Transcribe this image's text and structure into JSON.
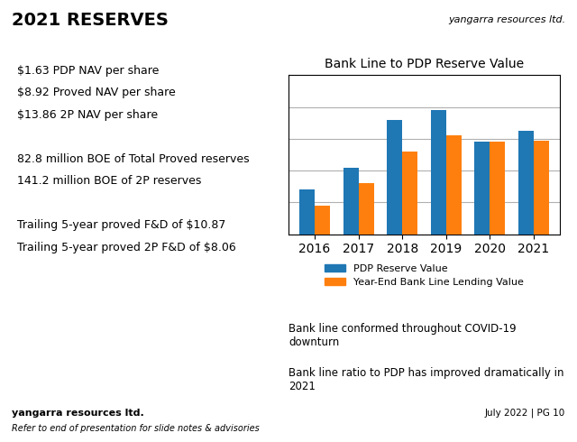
{
  "chart_data": {
    "type": "bar",
    "title": "Bank Line to PDP Reserve Value",
    "categories": [
      "2016",
      "2017",
      "2018",
      "2019",
      "2020",
      "2021"
    ],
    "series": [
      {
        "name": "PDP Reserve Value",
        "values": [
          2.8,
          4.2,
          7.2,
          7.8,
          5.8,
          6.5
        ]
      },
      {
        "name": "Year-End Bank Line Lending Value",
        "values": [
          1.8,
          3.2,
          5.2,
          6.2,
          5.8,
          5.9
        ]
      }
    ],
    "ylim": [
      0,
      10
    ],
    "yticks": [
      0,
      2,
      4,
      6,
      8,
      10
    ],
    "grid": true,
    "tick_labels": "x",
    "legend": "upper center",
    "annotations": [
      "2021 RESERVES",
      "yangarra resources ltd.",
      "$1.63 PDP NAV per share",
      "$8.92 Proved NAV per share",
      "$13.86 2P NAV per share",
      "82.8 million BOE of Total Proved reserves",
      "141.2 million BOE of 2P reserves",
      "Trailing 5-year proved F&D of $10.87",
      "Trailing 5-year proved 2P F&D of $8.06",
      "Bank line conformed throughout COVID-19\ndownturn",
      "Bank line ratio to PDP has improved dramatically in\n2021",
      "yangarra resources ltd.",
      "Refer to end of presentation for slide notes & advisories",
      "July 2022 | PG 10"
    ]
  }
}
